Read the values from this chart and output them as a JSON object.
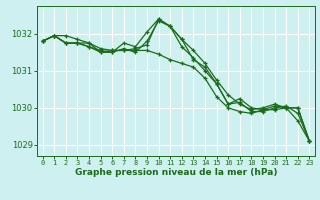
{
  "x": [
    0,
    1,
    2,
    3,
    4,
    5,
    6,
    7,
    8,
    9,
    10,
    11,
    12,
    13,
    14,
    15,
    16,
    17,
    18,
    19,
    20,
    21,
    22,
    23
  ],
  "series1": [
    1031.8,
    1031.95,
    1031.95,
    1031.85,
    1031.75,
    1031.6,
    1031.55,
    1031.55,
    1031.55,
    1031.55,
    1031.45,
    1031.3,
    1031.2,
    1031.1,
    1030.8,
    1030.3,
    1030.0,
    1029.9,
    1029.85,
    1029.95,
    1029.95,
    1030.0,
    1030.0,
    1029.1
  ],
  "series2": [
    1031.8,
    1031.95,
    1031.75,
    1031.75,
    1031.65,
    1031.55,
    1031.5,
    1031.6,
    1031.5,
    1031.8,
    1032.35,
    1032.2,
    1031.85,
    1031.55,
    1031.2,
    1030.75,
    1030.35,
    1030.1,
    1029.95,
    1030.0,
    1030.1,
    1030.0,
    1029.65,
    1029.1
  ],
  "series3": [
    1031.8,
    1031.95,
    1031.75,
    1031.75,
    1031.65,
    1031.5,
    1031.5,
    1031.75,
    1031.65,
    1032.05,
    1032.4,
    1032.2,
    1031.85,
    1031.3,
    1031.1,
    1030.65,
    1030.1,
    1030.25,
    1030.0,
    1029.95,
    1030.05,
    1030.0,
    1030.0,
    1029.1
  ],
  "series4": [
    1031.8,
    1031.95,
    1031.75,
    1031.75,
    1031.75,
    1031.5,
    1031.55,
    1031.55,
    1031.6,
    1031.7,
    1032.4,
    1032.2,
    1031.65,
    1031.35,
    1031.0,
    1030.65,
    1030.1,
    1030.15,
    1029.9,
    1029.9,
    1030.0,
    1030.05,
    1029.85,
    1029.1
  ],
  "ylim": [
    1028.7,
    1032.75
  ],
  "yticks": [
    1029,
    1030,
    1031,
    1032
  ],
  "xtick_labels": [
    "0",
    "1",
    "2",
    "3",
    "4",
    "5",
    "6",
    "7",
    "8",
    "9",
    "10",
    "11",
    "12",
    "13",
    "14",
    "15",
    "16",
    "17",
    "18",
    "19",
    "20",
    "21",
    "22",
    "23"
  ],
  "xlabel": "Graphe pression niveau de la mer (hPa)",
  "line_color": "#1a6b1a",
  "bg_color": "#cff0f0",
  "grid_color": "#ffffff",
  "marker": "+",
  "marker_size": 3.5,
  "line_width": 0.9
}
